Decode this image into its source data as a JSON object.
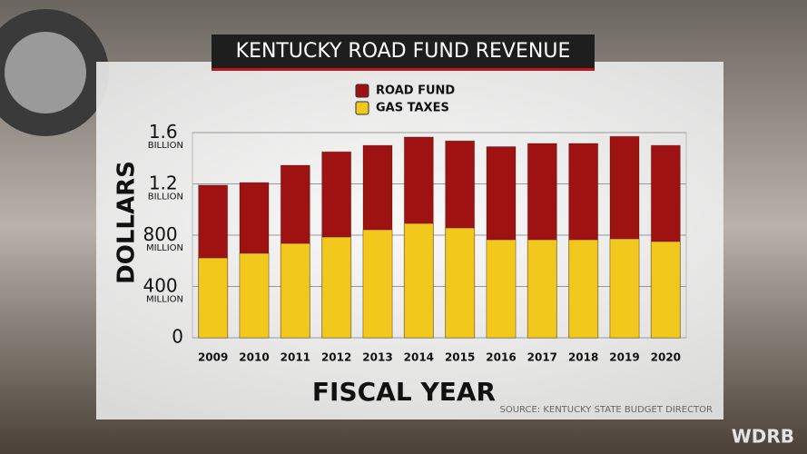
{
  "chart_data": {
    "type": "bar",
    "title": "KENTUCKY ROAD FUND REVENUE",
    "categories": [
      "2009",
      "2010",
      "2011",
      "2012",
      "2013",
      "2014",
      "2015",
      "2016",
      "2017",
      "2018",
      "2019",
      "2020"
    ],
    "series": [
      {
        "name": "ROAD FUND",
        "color": "#9e1212",
        "values": [
          1190,
          1210,
          1345,
          1450,
          1500,
          1565,
          1535,
          1490,
          1515,
          1515,
          1570,
          1500
        ]
      },
      {
        "name": "GAS TAXES",
        "color": "#f2c81c",
        "values": [
          622,
          658,
          735,
          785,
          842,
          891,
          856,
          764,
          764,
          764,
          771,
          750
        ]
      }
    ],
    "ylim": [
      0,
      1600
    ],
    "yticks": [
      0,
      {
        "value": 400,
        "label": "400 MILLION"
      },
      {
        "value": 800,
        "label": "800 MILLION"
      },
      {
        "value": 1200,
        "label": "1.2 BILLION"
      },
      {
        "value": 1600,
        "label": "1.6 BILLION"
      }
    ],
    "grid": true,
    "y_label": "DOLLARS",
    "x_label": "FISCAL YEAR",
    "source": "SOURCE: KENTUCKY STATE BUDGET DIRECTOR",
    "watermark": "WDRB"
  }
}
